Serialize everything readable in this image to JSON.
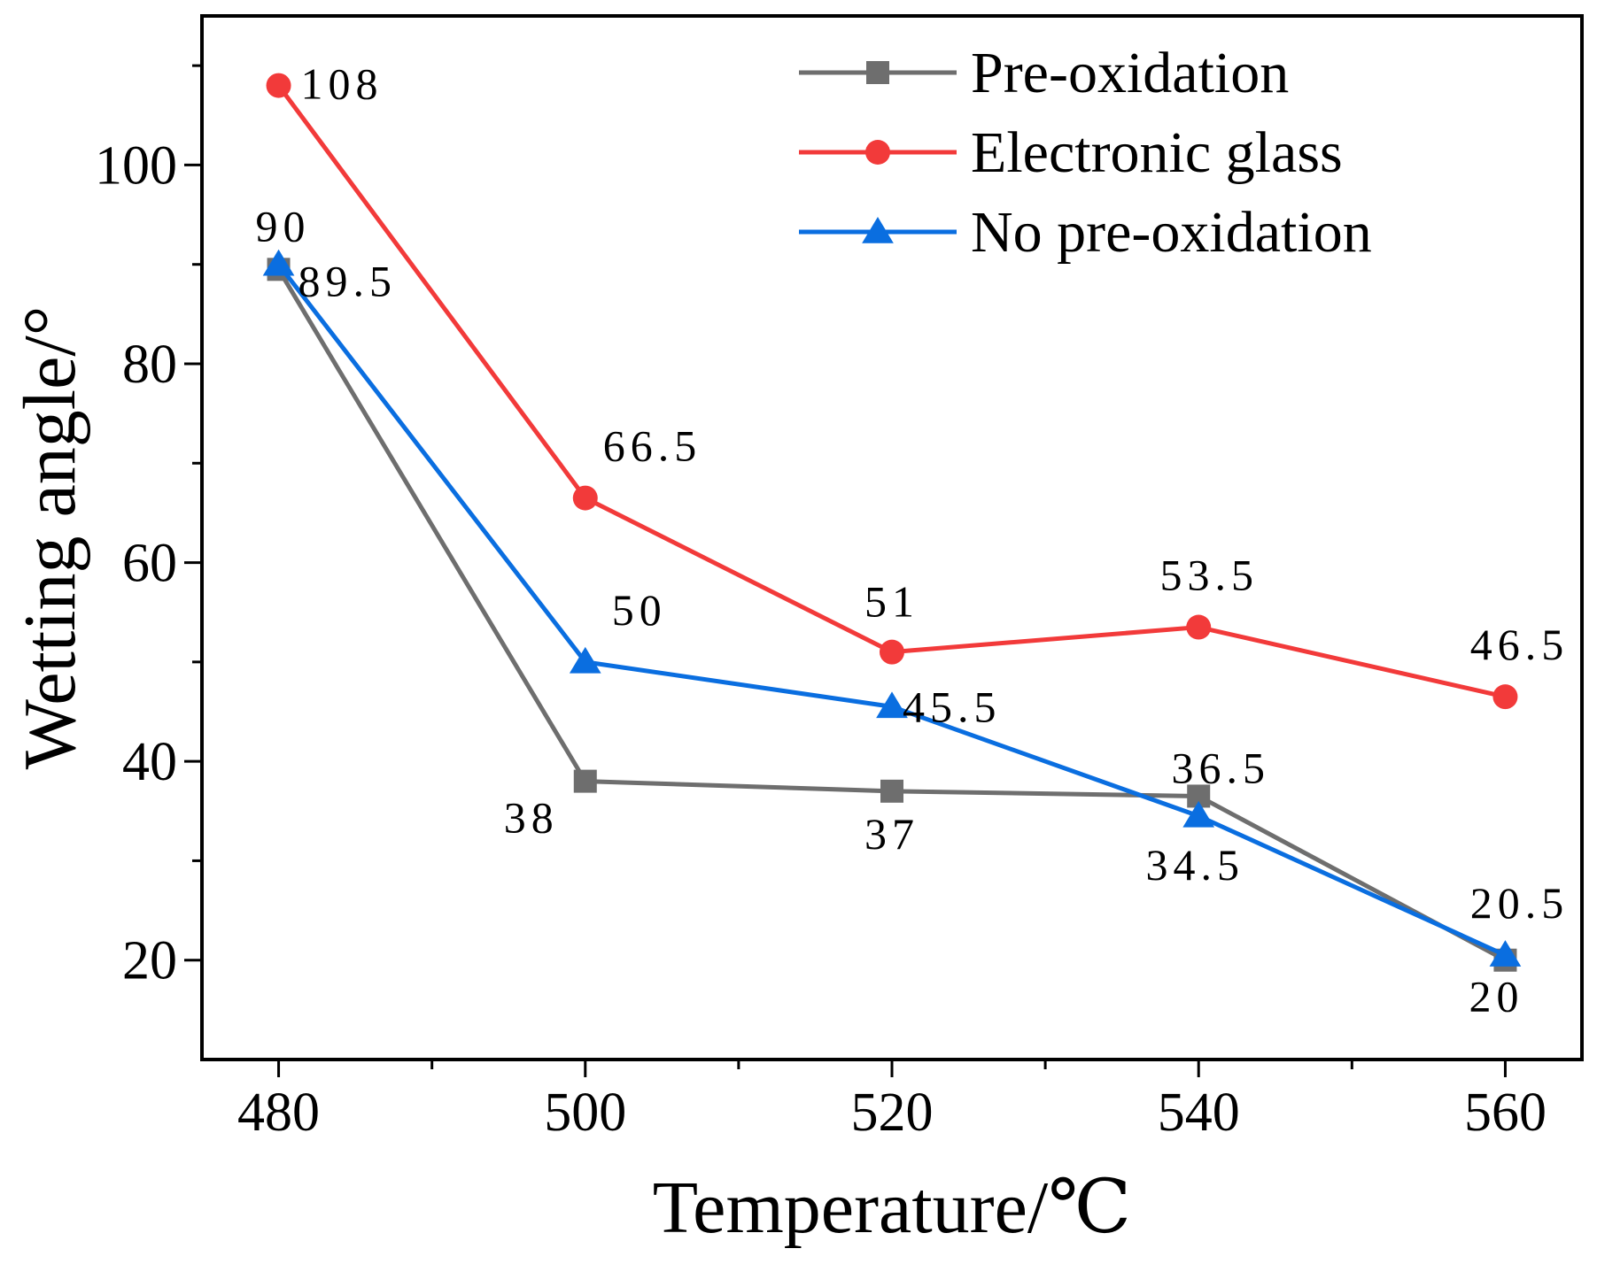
{
  "chart_data": {
    "type": "line",
    "title": "",
    "xlabel": "Temperature/℃",
    "ylabel": "Wetting angle/°",
    "xlim": [
      475,
      565
    ],
    "ylim": [
      10,
      115
    ],
    "x_ticks": [
      480,
      500,
      520,
      540,
      560
    ],
    "x_minor_ticks": [
      490,
      510,
      530,
      550
    ],
    "y_ticks": [
      20,
      40,
      60,
      80,
      100
    ],
    "y_minor_ticks": [
      30,
      50,
      70,
      90,
      110
    ],
    "x": [
      480,
      500,
      520,
      540,
      560
    ],
    "legend_position": "top-right",
    "series": [
      {
        "name": "Pre-oxidation",
        "color": "#6e6e6e",
        "marker": "square",
        "values": [
          89.5,
          38,
          37,
          36.5,
          20
        ],
        "labels": [
          "89.5",
          "38",
          "37",
          "36.5",
          "20"
        ]
      },
      {
        "name": "Electronic glass",
        "color": "#f23a3a",
        "marker": "circle",
        "values": [
          108,
          66.5,
          51,
          53.5,
          46.5
        ],
        "labels": [
          "108",
          "66.5",
          "51",
          "53.5",
          "46.5"
        ]
      },
      {
        "name": "No pre-oxidation",
        "color": "#0a6ee0",
        "marker": "triangle",
        "values": [
          90,
          50,
          45.5,
          34.5,
          20.5
        ],
        "labels": [
          "90",
          "50",
          "45.5",
          "34.5",
          "20.5"
        ]
      }
    ]
  }
}
